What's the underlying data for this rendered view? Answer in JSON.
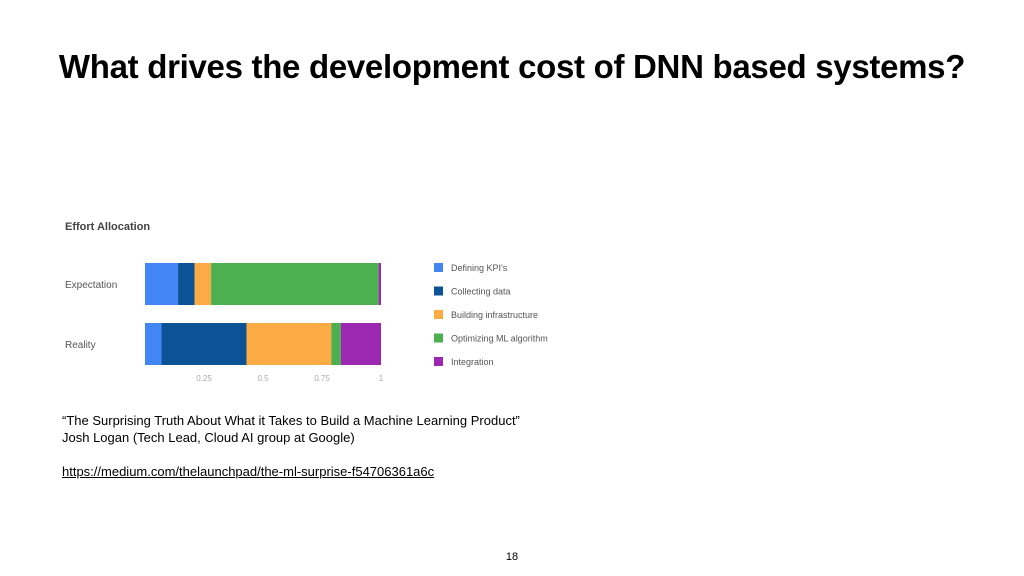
{
  "slide": {
    "title": "What drives the development cost of DNN based systems?",
    "page_number": "18"
  },
  "citation": {
    "quote": "“The Surprising Truth About What it Takes to Build a Machine Learning Product”",
    "author": "Josh Logan (Tech Lead, Cloud AI group at Google)",
    "url": "https://medium.com/thelaunchpad/the-ml-surprise-f54706361a6c"
  },
  "chart_data": {
    "type": "bar",
    "orientation": "horizontal",
    "stacked": true,
    "title": "Effort Allocation",
    "categories": [
      "Expectation",
      "Reality"
    ],
    "series": [
      {
        "name": "Defining KPI's",
        "color": "#4285F4",
        "values": [
          0.14,
          0.07
        ]
      },
      {
        "name": "Collecting data",
        "color": "#0B5394",
        "values": [
          0.07,
          0.36
        ]
      },
      {
        "name": "Building infrastructure",
        "color": "#FBAB44",
        "values": [
          0.07,
          0.36
        ]
      },
      {
        "name": "Optimizing ML algorithm",
        "color": "#4CAF50",
        "values": [
          0.71,
          0.04
        ]
      },
      {
        "name": "Integration",
        "color": "#9C27B0",
        "values": [
          0.01,
          0.17
        ]
      }
    ],
    "xlim": [
      0,
      1
    ],
    "xticks": [
      "0.25",
      "0.5",
      "0.75",
      "1"
    ],
    "xtick_values": [
      0.25,
      0.5,
      0.75,
      1
    ],
    "legend_position": "right",
    "grid": false
  }
}
